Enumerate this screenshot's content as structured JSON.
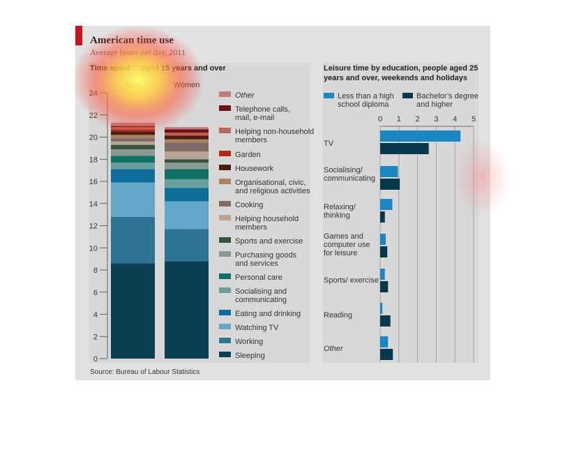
{
  "title": "American time use",
  "subtitle": "Average hours per day, 2011",
  "source": "Source: Bureau of Labour Statistics",
  "colors": {
    "background": "#e2e2e2",
    "accent": "#c4161c",
    "less_than_high_school": "#1b87c2",
    "bachelors_or_higher": "#07384e"
  },
  "chart_data": [
    {
      "type": "bar",
      "stacked": true,
      "title": "Time spent ... aged 15 years and over",
      "categories": [
        "Men",
        "Women"
      ],
      "ylim": [
        0,
        24
      ],
      "yticks": [
        0,
        2,
        4,
        6,
        8,
        10,
        12,
        14,
        16,
        18,
        20,
        22,
        24
      ],
      "series": [
        {
          "name": "Sleeping",
          "color": "#0b3f54",
          "values": [
            8.6,
            8.8
          ]
        },
        {
          "name": "Working",
          "color": "#2d7494",
          "values": [
            4.2,
            2.9
          ]
        },
        {
          "name": "Watching TV",
          "color": "#63a7cb",
          "values": [
            3.1,
            2.5
          ]
        },
        {
          "name": "Eating and drinking",
          "color": "#0f6d9c",
          "values": [
            1.2,
            1.2
          ]
        },
        {
          "name": "Socialising and communicating",
          "color": "#6a9e9e",
          "values": [
            0.6,
            0.8
          ]
        },
        {
          "name": "Personal care",
          "color": "#116e63",
          "values": [
            0.6,
            0.9
          ]
        },
        {
          "name": "Purchasing goods and services",
          "color": "#8a9a90",
          "values": [
            0.6,
            0.6
          ]
        },
        {
          "name": "Sports and exercise",
          "color": "#38533e",
          "values": [
            0.4,
            0.3
          ]
        },
        {
          "name": "Helping household members",
          "color": "#b8a596",
          "values": [
            0.3,
            0.7
          ]
        },
        {
          "name": "Cooking",
          "color": "#7d6a62",
          "values": [
            0.3,
            0.8
          ]
        },
        {
          "name": "Organisational, civic, and religious activities",
          "color": "#a88262",
          "values": [
            0.3,
            0.3
          ]
        },
        {
          "name": "Housework",
          "color": "#4a1d0e",
          "values": [
            0.3,
            0.3
          ]
        },
        {
          "name": "Garden",
          "color": "#b02a1c",
          "values": [
            0.2,
            0.1
          ]
        },
        {
          "name": "Helping non-household members",
          "color": "#b8675a",
          "values": [
            0.2,
            0.2
          ]
        },
        {
          "name": "Telephone calls, mail, e-mail",
          "color": "#6d1313",
          "values": [
            0.1,
            0.3
          ]
        },
        {
          "name": "Other",
          "color": "#c27b7b",
          "values": [
            0.3,
            0.2
          ]
        }
      ],
      "legend": [
        "Other",
        "Telephone calls,\nmail, e-mail",
        "Helping non-household\nmembers",
        "Garden",
        "Housework",
        "Organisational, civic,\nand religious activities",
        "Cooking",
        "Helping household\nmembers",
        "Sports and exercise",
        "Purchasing goods\nand services",
        "Personal care",
        "Socialising and\ncommunicating",
        "Eating and drinking",
        "Watching TV",
        "Working",
        "Sleeping"
      ]
    },
    {
      "type": "bar",
      "orientation": "horizontal",
      "title": "Leisure time by education, people aged 25\nyears and over, weekends and holidays",
      "categories": [
        "TV",
        "Socialising/\ncommunicating",
        "Relaxing/\nthinking",
        "Games and\ncomputer use\nfor leisure",
        "Sports/ exercise",
        "Reading",
        "Other"
      ],
      "xlim": [
        0,
        5
      ],
      "xticks": [
        0,
        1,
        2,
        3,
        4,
        5
      ],
      "grid": true,
      "series": [
        {
          "name": "Less than a high\nschool diploma",
          "color": "#1b87c2",
          "values": [
            4.3,
            0.95,
            0.65,
            0.3,
            0.25,
            0.12,
            0.42
          ]
        },
        {
          "name": "Bachelor’s degree\nand higher",
          "color": "#07384e",
          "values": [
            2.6,
            1.05,
            0.25,
            0.38,
            0.42,
            0.55,
            0.68
          ]
        }
      ]
    }
  ]
}
